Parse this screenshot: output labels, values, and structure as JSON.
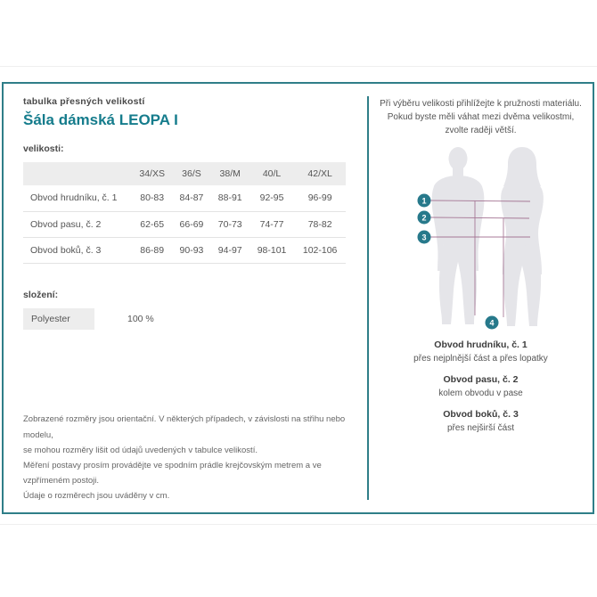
{
  "header": {
    "table_label": "tabulka přesných velikostí",
    "product_title": "Šála dámská LEOPA I",
    "sizes_label": "velikosti:"
  },
  "size_table": {
    "columns": [
      "34/XS",
      "36/S",
      "38/M",
      "40/L",
      "42/XL"
    ],
    "rows": [
      {
        "label": "Obvod hrudníku, č. 1",
        "values": [
          "80-83",
          "84-87",
          "88-91",
          "92-95",
          "96-99"
        ]
      },
      {
        "label": "Obvod pasu, č. 2",
        "values": [
          "62-65",
          "66-69",
          "70-73",
          "74-77",
          "78-82"
        ]
      },
      {
        "label": "Obvod boků, č. 3",
        "values": [
          "86-89",
          "90-93",
          "94-97",
          "98-101",
          "102-106"
        ]
      }
    ]
  },
  "composition": {
    "label": "složení:",
    "material": "Polyester",
    "percent": "100 %"
  },
  "disclaimer_lines": [
    "Zobrazené rozměry jsou orientační. V některých případech, v závislosti na střihu nebo modelu,",
    "se mohou rozměry lišit od údajů uvedených v tabulce velikostí.",
    "Měření postavy prosím provádějte ve spodním prádle krejčovským metrem a ve vzpřímeném postoji.",
    "Údaje o rozměrech jsou uváděny v cm."
  ],
  "right_panel": {
    "advice_lines": [
      "Při výběru velikosti přihlížejte k pružnosti materiálu.",
      "Pokud byste měli váhat mezi dvěma velikostmi,",
      "zvolte raději větší."
    ],
    "figure_markers": [
      "1",
      "2",
      "3",
      "4"
    ],
    "measures": [
      {
        "title": "Obvod hrudníku, č. 1",
        "desc": "přes nejplnější část a přes lopatky"
      },
      {
        "title": "Obvod pasu, č. 2",
        "desc": "kolem obvodu v pase"
      },
      {
        "title": "Obvod boků, č. 3",
        "desc": "přes nejširší část"
      }
    ]
  },
  "colors": {
    "accent_teal": "#157c8c",
    "border_teal": "#2f7e88",
    "marker_teal": "#27798b",
    "measure_line_purple": "#9a6487",
    "silhouette_gray": "#e5e5e9"
  }
}
